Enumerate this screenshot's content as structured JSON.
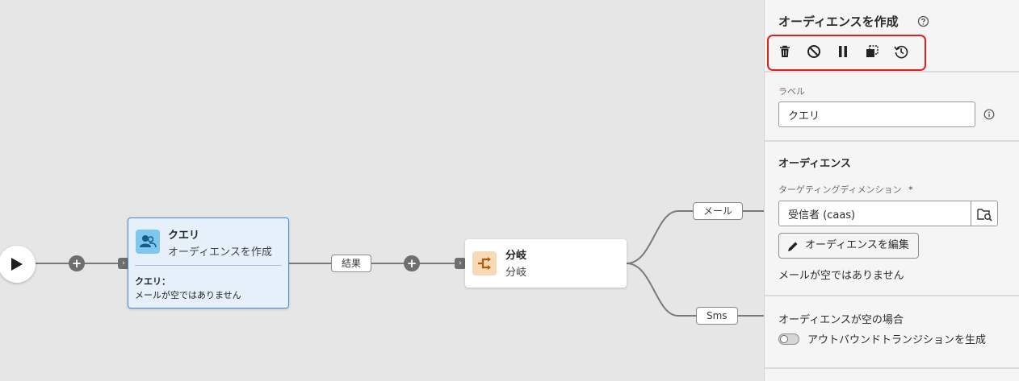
{
  "canvas": {
    "edge_labels": {
      "result": "結果",
      "mail": "メール",
      "sms": "Sms"
    },
    "query_node": {
      "title": "クエリ",
      "subtitle": "オーディエンスを作成",
      "condition_label": "クエリ：",
      "condition_value": "メールが空ではありません",
      "icon": "users-icon",
      "icon_color": "#7ec8f0"
    },
    "split_node": {
      "title": "分岐",
      "subtitle": "分岐",
      "icon": "split-arrows-icon",
      "icon_color": "#f7d9b5"
    }
  },
  "panel": {
    "title": "オーディエンスを作成",
    "toolbar": [
      {
        "name": "delete",
        "icon": "trash-icon"
      },
      {
        "name": "disable",
        "icon": "block-icon"
      },
      {
        "name": "pause",
        "icon": "pause-icon"
      },
      {
        "name": "copy",
        "icon": "copy-icon"
      },
      {
        "name": "history",
        "icon": "history-icon"
      }
    ],
    "toolbar_highlight_color": "#e02020",
    "label_field": {
      "label": "ラベル",
      "value": "クエリ"
    },
    "audience_section": {
      "title": "オーディエンス",
      "targeting_label": "ターゲティングディメンション",
      "required_mark": "*",
      "targeting_value": "受信者 (caas)",
      "edit_button": "オーディエンスを編集",
      "condition_text": "メールが空ではありません"
    },
    "empty_section": {
      "title": "オーディエンスが空の場合",
      "toggle_label": "アウトバウンドトランジションを生成",
      "toggle_on": false
    }
  }
}
